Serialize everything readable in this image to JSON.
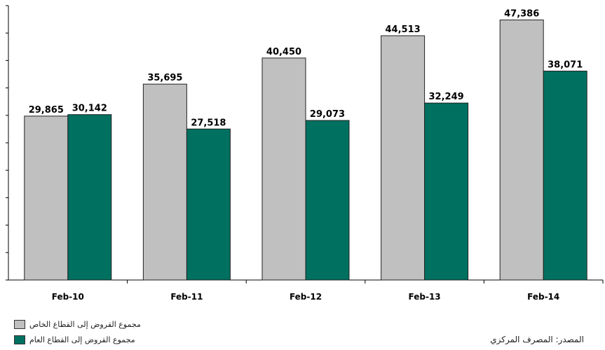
{
  "chart_data": {
    "type": "bar",
    "categories": [
      "Feb-10",
      "Feb-11",
      "Feb-12",
      "Feb-13",
      "Feb-14"
    ],
    "series": [
      {
        "name": "مجموع القروض إلى القطاع الخاص",
        "values": [
          29865,
          35695,
          40450,
          44513,
          47386
        ],
        "labels": [
          "29,865",
          "35,695",
          "40,450",
          "44,513",
          "47,386"
        ],
        "color": "#c0c0c0"
      },
      {
        "name": "مجموع القروض إلى القطاع العام",
        "values": [
          30142,
          27518,
          29073,
          32249,
          38071
        ],
        "labels": [
          "30,142",
          "27,518",
          "29,073",
          "32,249",
          "38,071"
        ],
        "color": "#007060"
      }
    ],
    "ylim": [
      0,
      50000
    ],
    "grid": false,
    "legend_position": "bottom-left"
  },
  "source": "المصدر: المصرف المركزي"
}
